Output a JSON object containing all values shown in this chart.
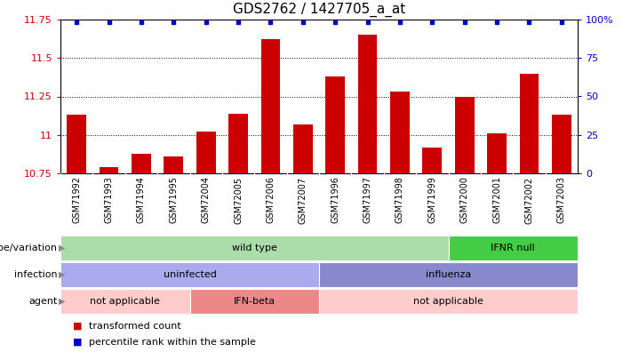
{
  "title": "GDS2762 / 1427705_a_at",
  "samples": [
    "GSM71992",
    "GSM71993",
    "GSM71994",
    "GSM71995",
    "GSM72004",
    "GSM72005",
    "GSM72006",
    "GSM72007",
    "GSM71996",
    "GSM71997",
    "GSM71998",
    "GSM71999",
    "GSM72000",
    "GSM72001",
    "GSM72002",
    "GSM72003"
  ],
  "bar_values": [
    11.13,
    10.79,
    10.88,
    10.86,
    11.02,
    11.14,
    11.62,
    11.07,
    11.38,
    11.65,
    11.28,
    10.92,
    11.25,
    11.01,
    11.4,
    11.13
  ],
  "bar_color": "#cc0000",
  "dot_color": "#0000cc",
  "ymin": 10.75,
  "ymax": 11.75,
  "yticks": [
    10.75,
    11.0,
    11.25,
    11.5,
    11.75
  ],
  "ytick_labels": [
    "10.75",
    "11",
    "11.25",
    "11.5",
    "11.75"
  ],
  "right_yticks": [
    0,
    25,
    50,
    75,
    100
  ],
  "right_ytick_labels": [
    "0",
    "25",
    "50",
    "75",
    "100%"
  ],
  "genotype_groups": [
    {
      "label": "wild type",
      "start": 0,
      "end": 11,
      "color": "#aaddaa"
    },
    {
      "label": "IFNR null",
      "start": 12,
      "end": 15,
      "color": "#44cc44"
    }
  ],
  "infection_groups": [
    {
      "label": "uninfected",
      "start": 0,
      "end": 7,
      "color": "#aaaaee"
    },
    {
      "label": "influenza",
      "start": 8,
      "end": 15,
      "color": "#8888cc"
    }
  ],
  "agent_groups": [
    {
      "label": "not applicable",
      "start": 0,
      "end": 3,
      "color": "#ffcccc"
    },
    {
      "label": "IFN-beta",
      "start": 4,
      "end": 7,
      "color": "#ee8888"
    },
    {
      "label": "not applicable",
      "start": 8,
      "end": 15,
      "color": "#ffcccc"
    }
  ],
  "row_labels": [
    "genotype/variation",
    "infection",
    "agent"
  ],
  "legend_items": [
    {
      "color": "#cc0000",
      "label": "transformed count"
    },
    {
      "color": "#0000cc",
      "label": "percentile rank within the sample"
    }
  ],
  "title_fontsize": 11,
  "tick_fontsize": 8,
  "label_fontsize": 8,
  "xtick_fontsize": 7
}
